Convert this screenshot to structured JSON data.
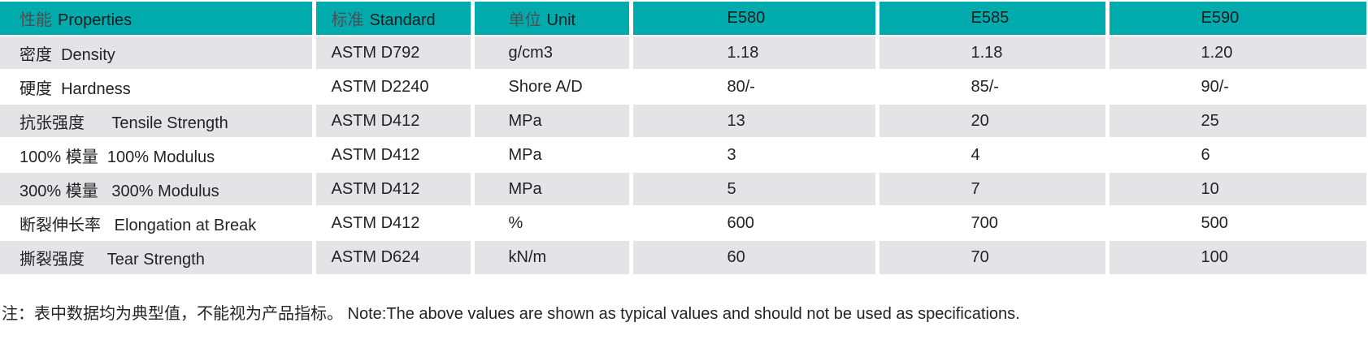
{
  "table": {
    "header": {
      "properties": {
        "zh": "性能",
        "en": "Properties"
      },
      "standard": {
        "zh": "标准",
        "en": "Standard"
      },
      "unit": {
        "zh": "单位",
        "en": "Unit"
      },
      "grades": [
        "E580",
        "E585",
        "E590"
      ]
    },
    "rows": [
      {
        "property": "密度  Density",
        "standard": "ASTM D792",
        "unit": "g/cm3",
        "values": [
          "1.18",
          "1.18",
          "1.20"
        ]
      },
      {
        "property": "硬度  Hardness",
        "standard": "ASTM D2240",
        "unit": "Shore A/D",
        "values": [
          "80/-",
          "85/-",
          "90/-"
        ]
      },
      {
        "property": "抗张强度      Tensile Strength",
        "standard": "ASTM D412",
        "unit": "MPa",
        "values": [
          "13",
          "20",
          "25"
        ]
      },
      {
        "property": "100% 模量  100% Modulus",
        "standard": "ASTM D412",
        "unit": "MPa",
        "values": [
          "3",
          "4",
          "6"
        ]
      },
      {
        "property": "300% 模量   300% Modulus",
        "standard": "ASTM D412",
        "unit": "MPa",
        "values": [
          "5",
          "7",
          "10"
        ]
      },
      {
        "property": "断裂伸长率   Elongation at Break",
        "standard": "ASTM D412",
        "unit": "%",
        "values": [
          "600",
          "700",
          "500"
        ]
      },
      {
        "property": "撕裂强度     Tear Strength",
        "standard": "ASTM D624",
        "unit": "kN/m",
        "values": [
          "60",
          "70",
          "100"
        ]
      }
    ]
  },
  "footnote": "注：表中数据均为典型值，不能视为产品指标。 Note:The above values are shown as typical values and should not be used as specifications.",
  "colors": {
    "header_teal": "#00abae",
    "row_gray": "#e4e4e6"
  }
}
